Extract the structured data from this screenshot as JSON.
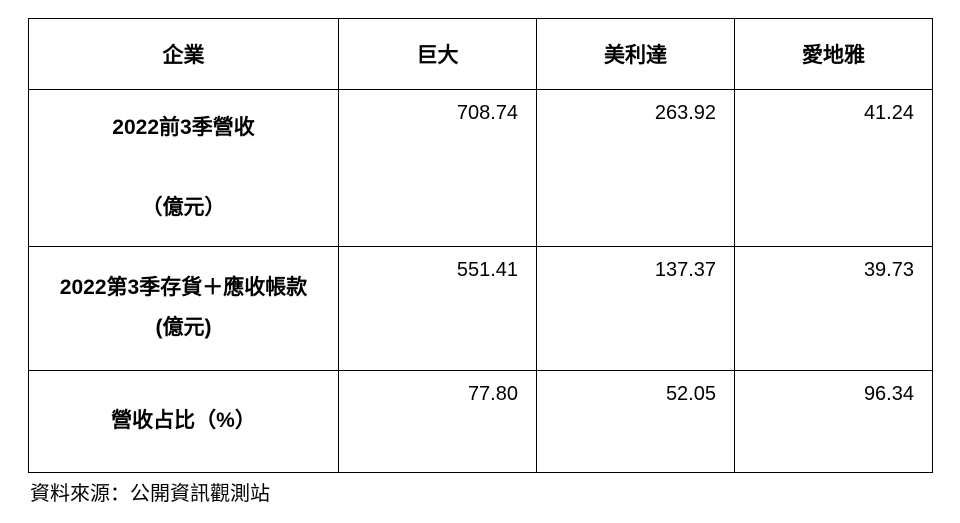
{
  "table": {
    "columns": [
      {
        "label": "企業",
        "width_class": "col-first"
      },
      {
        "label": "巨大",
        "width_class": "col-data"
      },
      {
        "label": "美利達",
        "width_class": "col-data"
      },
      {
        "label": "愛地雅",
        "width_class": "col-data"
      }
    ],
    "rows": [
      {
        "header_line1": "2022前3季營收",
        "header_line2": "（億元）",
        "row_class": "row-1",
        "values": [
          "708.74",
          "263.92",
          "41.24"
        ]
      },
      {
        "header_line1": "2022第3季存貨＋應收帳款",
        "header_line2": "(億元)",
        "row_class": "row-2",
        "values": [
          "551.41",
          "137.37",
          "39.73"
        ]
      },
      {
        "header_line1": "營收占比（%）",
        "header_line2": "",
        "row_class": "row-3",
        "values": [
          "77.80",
          "52.05",
          "96.34"
        ]
      }
    ],
    "border_color": "#000000",
    "background_color": "#ffffff",
    "header_fontsize": 21,
    "data_fontsize": 20
  },
  "source_note": "資料來源：公開資訊觀測站"
}
